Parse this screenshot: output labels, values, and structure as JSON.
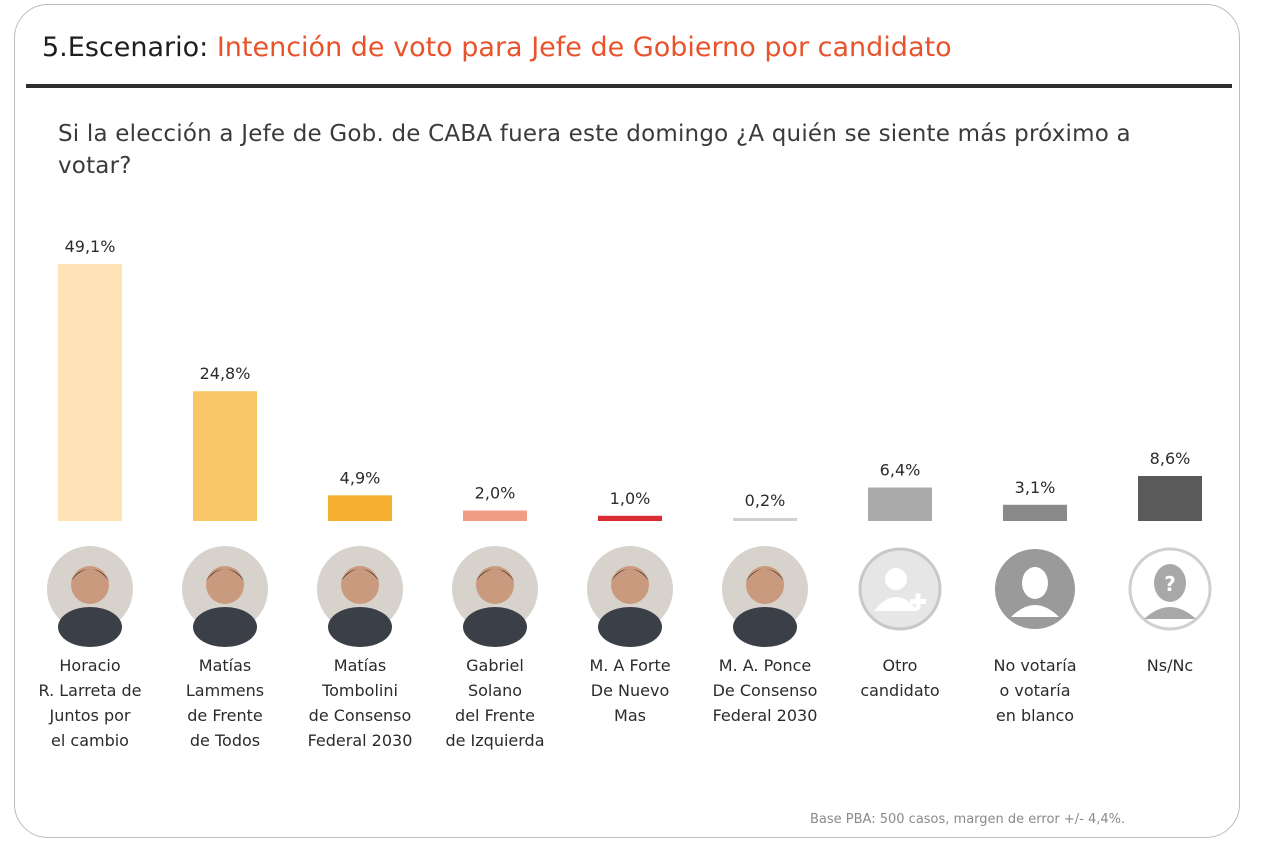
{
  "header": {
    "title_prefix": "5.Escenario: ",
    "title_main": "Intención de voto para Jefe de Gobierno por candidato"
  },
  "question": "Si la elección a Jefe de Gob. de CABA fuera este domingo ¿A quién se siente más próximo a votar?",
  "footnote": "Base PBA: 500 casos, margen de error +/- 4,4%.",
  "colors": {
    "title_accent": "#e8532b",
    "rule": "#2e2e2e"
  },
  "chart_data": {
    "type": "bar",
    "title": "",
    "xlabel": "",
    "ylabel": "",
    "ylim": [
      0,
      49.1
    ],
    "grid": false,
    "categories": [
      [
        "Horacio",
        "R. Larreta de",
        "Juntos por",
        "el cambio"
      ],
      [
        "Matías",
        "Lammens",
        "de Frente",
        "de Todos"
      ],
      [
        "Matías",
        "Tombolini",
        "de Consenso",
        "Federal 2030"
      ],
      [
        "Gabriel",
        "Solano",
        "del Frente",
        "de Izquierda"
      ],
      [
        "M. A Forte",
        "De Nuevo",
        "Mas"
      ],
      [
        "M. A. Ponce",
        "De Consenso",
        "Federal 2030"
      ],
      [
        "Otro",
        "candidato"
      ],
      [
        "No votaría",
        "o votaría",
        "en blanco"
      ],
      [
        "Ns/Nc"
      ]
    ],
    "values": [
      49.1,
      24.8,
      4.9,
      2.0,
      1.0,
      0.2,
      6.4,
      3.1,
      8.6
    ],
    "value_labels": [
      "49,1%",
      "24,8%",
      "4,9%",
      "2,0%",
      "1,0%",
      "0,2%",
      "6,4%",
      "3,1%",
      "8,6%"
    ],
    "bar_colors": [
      "#fde3b5",
      "#f9c768",
      "#f4af2e",
      "#f19c85",
      "#d92d33",
      "#d0d0d0",
      "#ababab",
      "#8a8a8a",
      "#5a5a5a"
    ],
    "avatars": [
      "photo",
      "photo",
      "photo",
      "photo",
      "photo",
      "photo",
      "add-user-icon",
      "person-silhouette-icon",
      "question-person-icon"
    ]
  }
}
